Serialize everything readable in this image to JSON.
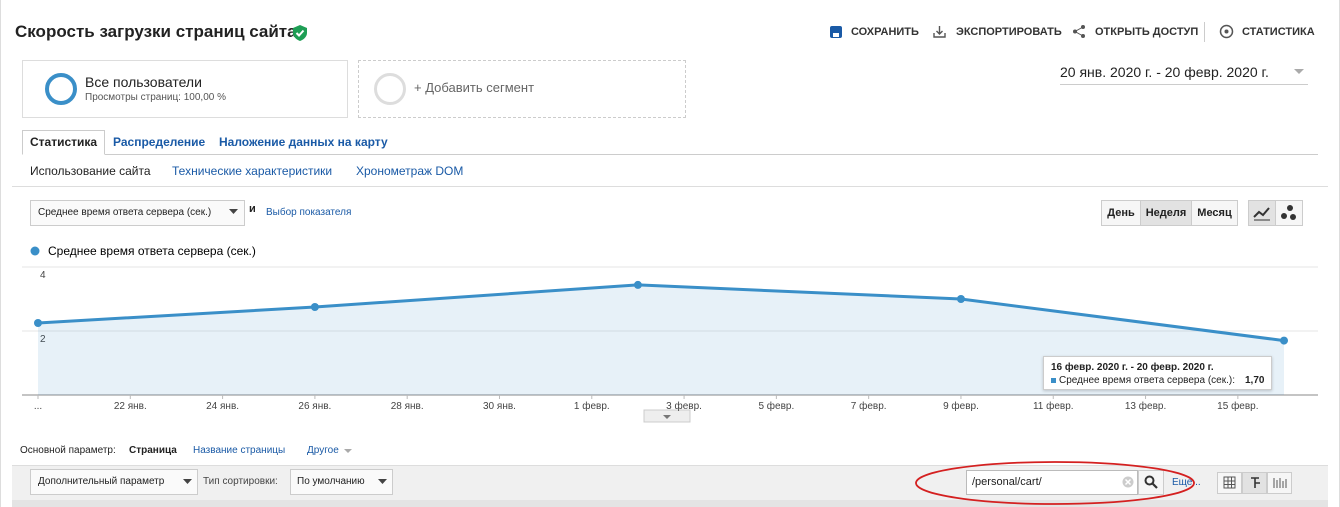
{
  "header": {
    "title": "Скорость загрузки страниц сайта",
    "actions": [
      "СОХРАНИТЬ",
      "ЭКСПОРТИРОВАТЬ",
      "ОТКРЫТЬ ДОСТУП",
      "СТАТИСТИКА"
    ]
  },
  "segments": {
    "name": "Все пользователи",
    "detail": "Просмотры страниц: 100,00 %",
    "add": "+ Добавить сегмент"
  },
  "date_range": "20 янв. 2020 г. - 20 февр. 2020 г.",
  "tabs": [
    "Статистика",
    "Распределение",
    "Наложение данных на карту"
  ],
  "subtabs": [
    "Использование сайта",
    "Технические характеристики",
    "Хронометраж DOM"
  ],
  "metric": {
    "selected": "Среднее время ответа сервера (сек.)",
    "and": "и",
    "add": "Выбор показателя"
  },
  "periods": [
    "День",
    "Неделя",
    "Месяц"
  ],
  "chart_data": {
    "type": "line",
    "x": [
      0,
      6,
      13,
      20,
      27
    ],
    "series": [
      {
        "name": "Среднее время ответа сервера (сек.)",
        "color": "#3a8fc8",
        "values": [
          2.25,
          2.75,
          3.44,
          3.0,
          1.7
        ]
      }
    ],
    "xlim": [
      0,
      27
    ],
    "xticks": [
      {
        "value": 0,
        "label": "..."
      },
      {
        "value": 2,
        "label": "22 янв."
      },
      {
        "value": 4,
        "label": "24 янв."
      },
      {
        "value": 6,
        "label": "26 янв."
      },
      {
        "value": 8,
        "label": "28 янв."
      },
      {
        "value": 10,
        "label": "30 янв."
      },
      {
        "value": 12,
        "label": "1 февр."
      },
      {
        "value": 14,
        "label": "3 февр."
      },
      {
        "value": 16,
        "label": "5 февр."
      },
      {
        "value": 18,
        "label": "7 февр."
      },
      {
        "value": 20,
        "label": "9 февр."
      },
      {
        "value": 22,
        "label": "11 февр."
      },
      {
        "value": 24,
        "label": "13 февр."
      },
      {
        "value": 26,
        "label": "15 февр."
      }
    ],
    "ylim": [
      0,
      4
    ],
    "yticks": [
      2,
      4
    ],
    "grid": true,
    "tooltip": {
      "title": "16 февр. 2020 г. - 20 февр. 2020 г.",
      "label": "Среднее время ответа сервера (сек.):",
      "value": "1,70"
    }
  },
  "dimension": {
    "label": "Основной параметр:",
    "options": [
      "Страница",
      "Название страницы",
      "Другое"
    ]
  },
  "toolbar": {
    "secondary": "Дополнительный параметр",
    "sort_label": "Тип сортировки:",
    "sort": "По умолчанию",
    "search": "/personal/cart/",
    "more": "Еще..."
  }
}
